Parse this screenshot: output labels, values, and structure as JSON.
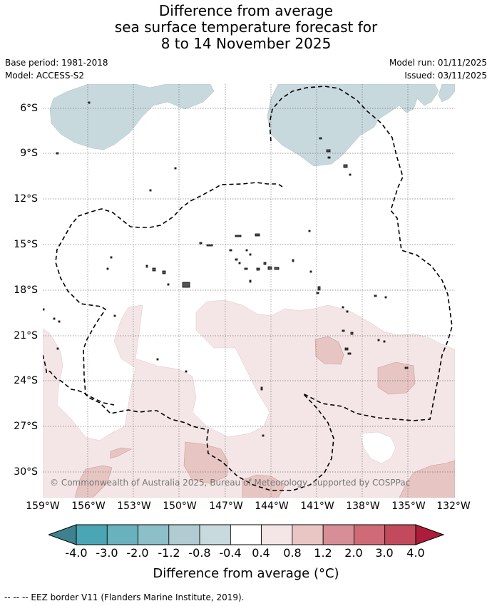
{
  "title": {
    "line1": "Difference from average",
    "line2": "sea surface temperature forecast for",
    "line3": "8 to 14 November 2025"
  },
  "meta": {
    "base_period": "Base period: 1981-2018",
    "model": "Model: ACCESS-S2",
    "model_run": "Model run: 01/11/2025",
    "issued": "Issued: 03/11/2025"
  },
  "map": {
    "lon_range": [
      -159,
      -132
    ],
    "lat_range": [
      -31.5,
      -4.5
    ],
    "x_ticks": [
      "159°W",
      "156°W",
      "153°W",
      "150°W",
      "147°W",
      "144°W",
      "141°W",
      "138°W",
      "135°W",
      "132°W"
    ],
    "y_ticks": [
      "6°S",
      "9°S",
      "12°S",
      "15°S",
      "18°S",
      "21°S",
      "24°S",
      "27°S",
      "30°S"
    ],
    "copyright": "© Commonwealth of Australia 2025, Bureau of Meteorology, supported by COSPPac"
  },
  "colorbar": {
    "ticks": [
      "-4.0",
      "-3.0",
      "-2.0",
      "-1.2",
      "-0.8",
      "-0.4",
      "0.4",
      "0.8",
      "1.2",
      "2.0",
      "3.0",
      "4.0"
    ],
    "colors": [
      "#4aa6b4",
      "#6ab1be",
      "#8dbfc8",
      "#b0cbd1",
      "#c8dadd",
      "#ffffff",
      "#f4e6e6",
      "#e9c5c3",
      "#d88e96",
      "#cf6a77",
      "#c34a5c"
    ],
    "under_color": "#3d828e",
    "over_color": "#ad1c3a",
    "label": "Difference from average (°C)"
  },
  "footnote": "-- -- -- EEZ border V11 (Flanders Marine Institute, 2019)."
}
